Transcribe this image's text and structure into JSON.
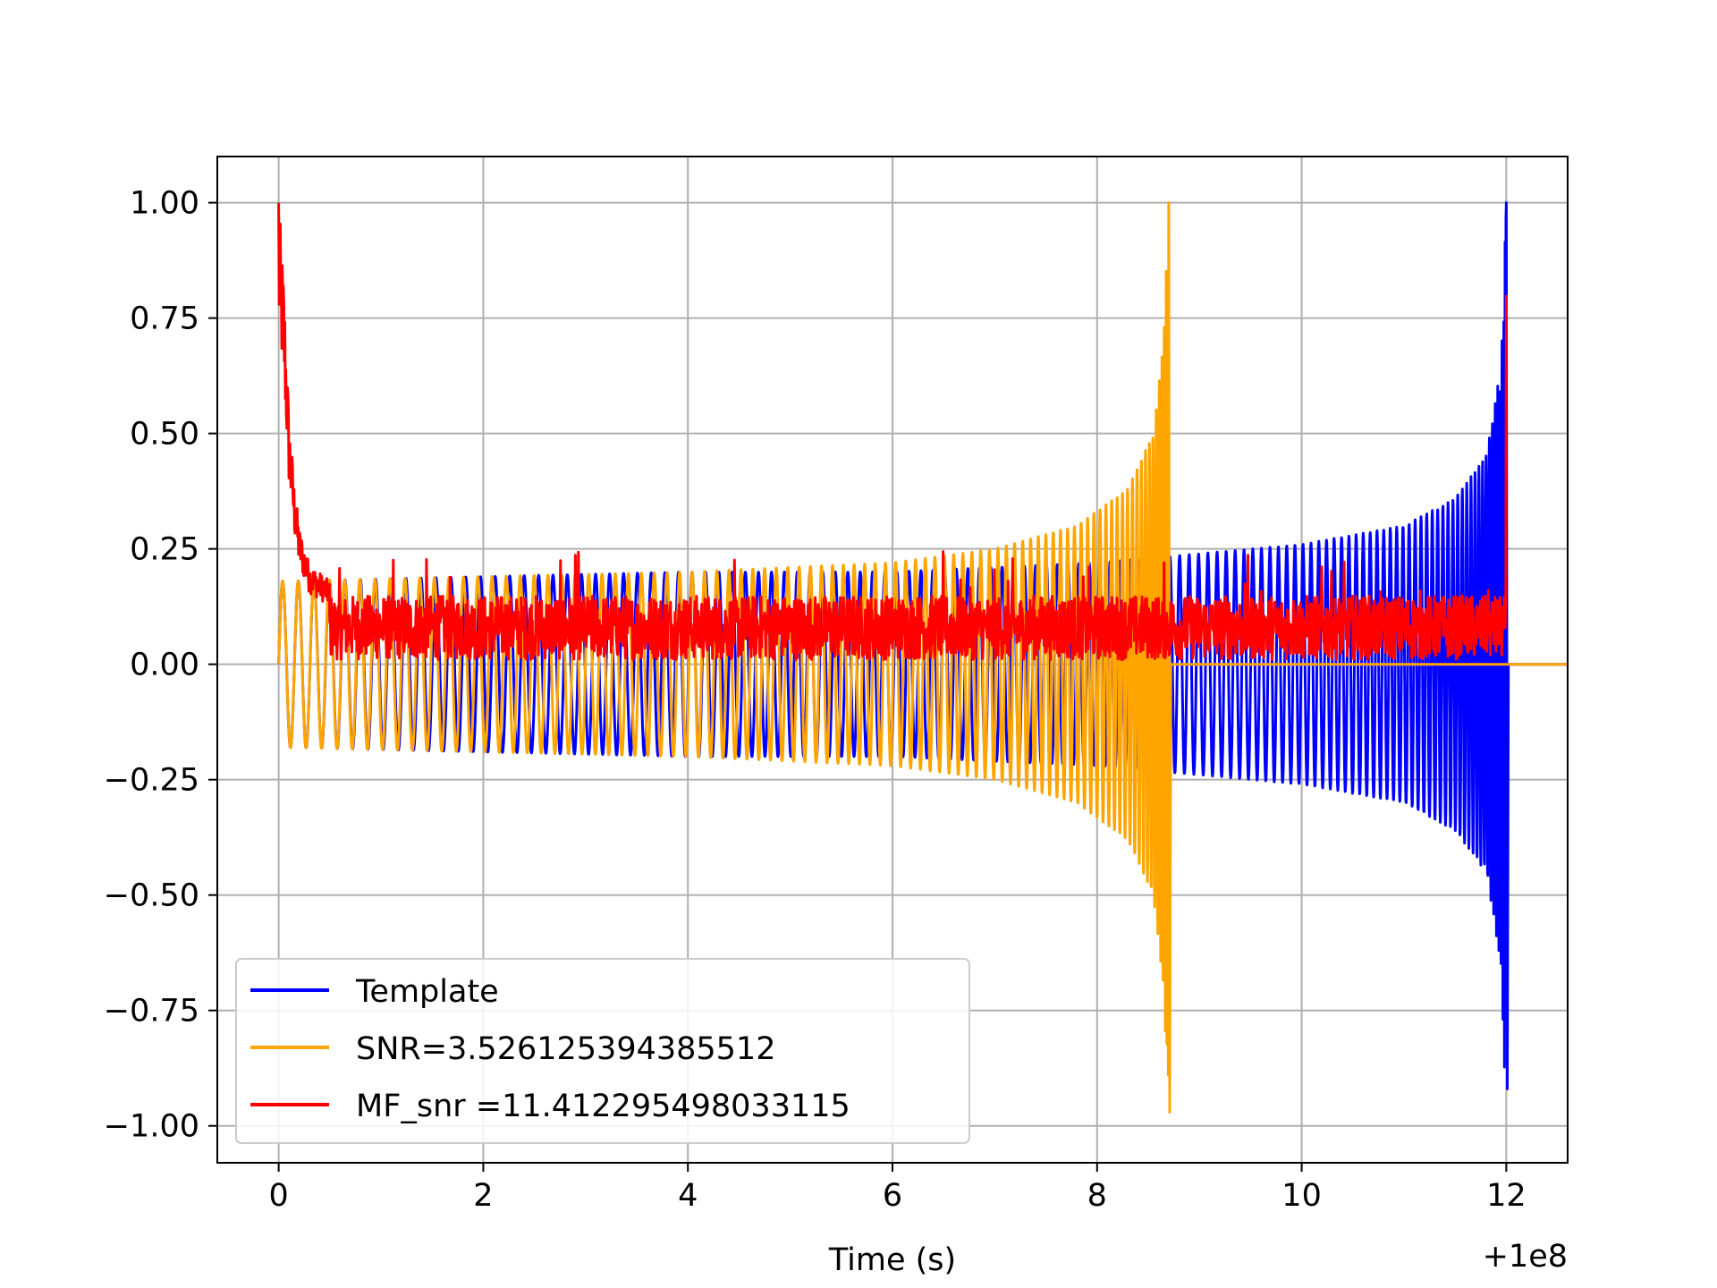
{
  "chart_data": {
    "type": "line",
    "xlabel": "Time (s)",
    "ylabel": "",
    "x_offset_label": "+1e8",
    "xlim": [
      -0.6,
      12.6
    ],
    "ylim": [
      -1.08,
      1.1
    ],
    "grid": true,
    "legend_position": "lower-left",
    "x_ticks": [
      0,
      2,
      4,
      6,
      8,
      10,
      12
    ],
    "x_tick_labels": [
      "0",
      "2",
      "4",
      "6",
      "8",
      "10",
      "12"
    ],
    "y_ticks": [
      1.0,
      0.75,
      0.5,
      0.25,
      0.0,
      -0.25,
      -0.5,
      -0.75,
      -1.0
    ],
    "y_tick_labels": [
      "1.00",
      "0.75",
      "0.50",
      "0.25",
      "0.00",
      "−0.25",
      "−0.50",
      "−0.75",
      "−1.00"
    ],
    "series": [
      {
        "name": "Template",
        "color": "#0000ff",
        "kind": "chirp",
        "start": 0.0,
        "merge": 12.0,
        "peak": 1.0,
        "trough": -0.92,
        "base_amp": 0.18,
        "envelope_points": [
          [
            0.0,
            0.18
          ],
          [
            2.0,
            0.19
          ],
          [
            4.0,
            0.2
          ],
          [
            6.0,
            0.2
          ],
          [
            8.0,
            0.22
          ],
          [
            10.0,
            0.26
          ],
          [
            11.0,
            0.3
          ],
          [
            11.5,
            0.36
          ],
          [
            11.8,
            0.45
          ],
          [
            11.95,
            0.65
          ],
          [
            12.0,
            1.0
          ]
        ]
      },
      {
        "name": "SNR=3.526125394385512",
        "color": "#ffa500",
        "kind": "chirp",
        "start": 0.0,
        "merge": 8.7,
        "peak": 1.0,
        "trough": -0.97,
        "base_amp": 0.18,
        "envelope_points": [
          [
            0.0,
            0.18
          ],
          [
            2.0,
            0.19
          ],
          [
            4.0,
            0.2
          ],
          [
            6.0,
            0.22
          ],
          [
            7.0,
            0.25
          ],
          [
            7.8,
            0.3
          ],
          [
            8.3,
            0.38
          ],
          [
            8.55,
            0.5
          ],
          [
            8.65,
            0.7
          ],
          [
            8.7,
            1.0
          ]
        ]
      },
      {
        "name": "MF_snr =11.412295498033115",
        "color": "#ff0000",
        "kind": "noise",
        "start": 0.0,
        "end": 12.0,
        "initial_peak": 1.0,
        "mean": 0.08,
        "spread": 0.07,
        "end_peak": 0.8,
        "decay_points": [
          [
            0.0,
            1.0
          ],
          [
            0.05,
            0.85
          ],
          [
            0.1,
            0.55
          ],
          [
            0.15,
            0.4
          ],
          [
            0.2,
            0.3
          ],
          [
            0.3,
            0.22
          ],
          [
            0.5,
            0.18
          ]
        ]
      }
    ]
  }
}
